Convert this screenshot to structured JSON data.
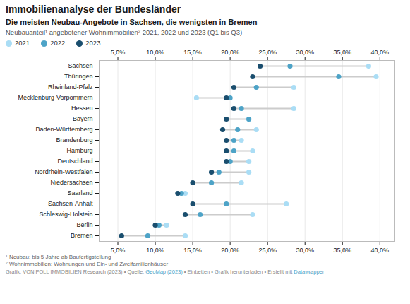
{
  "chart_data": {
    "type": "dumbbell",
    "title": "Immobilienanalyse der Bundesländer",
    "subtitle": "Die meisten Neubau-Angebote in Sachsen, die wenigsten in Bremen",
    "caption": "Neubauanteil¹ angebotener Wohnimmobilien² 2021, 2022 und 2023 (Q1 bis Q3)",
    "footnotes": [
      "¹ Neubau: bis 5 Jahre ab Baufertigstellung",
      "² Wohnimmobilien: Wohnungen und Ein- und Zweifamilienhäuser"
    ],
    "footer": [
      "Grafik: VON POLL IMMOBILIEN Research (2023) • Quelle: ",
      "GeoMap (2023)",
      " • Einbetten • Grafik herunterladen • Erstellt mit ",
      "Datawrapper"
    ],
    "categories": [
      "Sachsen",
      "Thüringen",
      "Rheinland-Pfalz",
      "Mecklenburg-Vorpommern",
      "Hessen",
      "Bayern",
      "Baden-Württemberg",
      "Brandenburg",
      "Hamburg",
      "Deutschland",
      "Nordrhein-Westfalen",
      "Niedersachsen",
      "Saarland",
      "Sachsen-Anhalt",
      "Schleswig-Holstein",
      "Berlin",
      "Bremen"
    ],
    "series": [
      {
        "name": "2021",
        "color": "#aaddf5",
        "values": [
          38.5,
          39.5,
          28.5,
          15.5,
          28.5,
          22.5,
          23.5,
          21.5,
          23.0,
          22.5,
          22.5,
          21.5,
          14.0,
          27.5,
          23.0,
          11.5,
          14.0
        ]
      },
      {
        "name": "2022",
        "color": "#4da3c7",
        "values": [
          28.0,
          34.5,
          23.5,
          20.0,
          21.5,
          22.5,
          21.0,
          20.5,
          20.5,
          20.0,
          18.5,
          17.5,
          13.5,
          19.5,
          16.0,
          10.5,
          9.0
        ]
      },
      {
        "name": "2023",
        "color": "#1a4e6e",
        "values": [
          24.0,
          23.0,
          20.5,
          19.5,
          20.5,
          19.5,
          19.0,
          19.5,
          19.5,
          19.5,
          17.5,
          15.0,
          13.0,
          15.0,
          14.0,
          10.0,
          5.5
        ]
      }
    ],
    "xlim": [
      2.5,
      42
    ],
    "xticks": [
      {
        "value": 5,
        "label": "5,0%"
      },
      {
        "value": 10,
        "label": "10,0%"
      },
      {
        "value": 15,
        "label": "15,0%"
      },
      {
        "value": 20,
        "label": "20,0%"
      },
      {
        "value": 25,
        "label": "25,0%"
      },
      {
        "value": 30,
        "label": "30,0%"
      },
      {
        "value": 35,
        "label": "35,0%"
      },
      {
        "value": 40,
        "label": "40,0%"
      }
    ],
    "grid": true,
    "legend": "top-left"
  }
}
